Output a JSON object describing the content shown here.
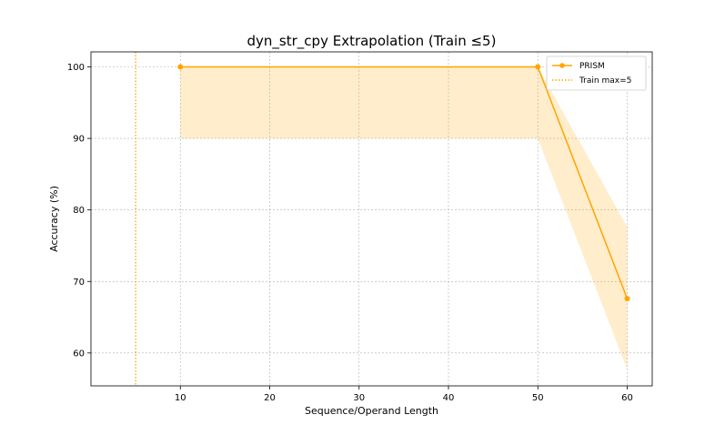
{
  "chart_data": {
    "type": "line",
    "title": "dyn_str_cpy Extrapolation (Train ≤5)",
    "xlabel": "Sequence/Operand Length",
    "ylabel": "Accuracy (%)",
    "xlim": [
      0,
      62.8
    ],
    "ylim": [
      55.4,
      102.1
    ],
    "xticks": [
      10,
      20,
      30,
      40,
      50,
      60
    ],
    "yticks": [
      60,
      70,
      80,
      90,
      100
    ],
    "grid": true,
    "legend_position": "top-right",
    "series": [
      {
        "name": "PRISM",
        "color": "#FFA500",
        "x": [
          10,
          50,
          60
        ],
        "y": [
          100,
          100,
          67.6
        ],
        "band_lower": [
          90,
          90,
          57.7
        ],
        "band_upper": [
          100,
          100,
          77.6
        ]
      }
    ],
    "reference_lines": [
      {
        "name": "Train max=5",
        "x": 5,
        "style": "dotted",
        "color": "#FFA500"
      }
    ]
  }
}
